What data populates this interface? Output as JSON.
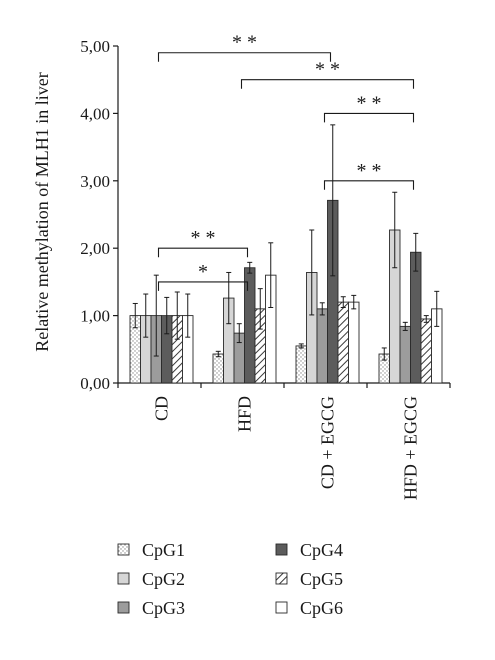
{
  "chart_data": {
    "type": "bar",
    "ylabel": "Relative methylation of MLH1 in liver",
    "ylim": [
      0,
      5
    ],
    "yticks": [
      "0,00",
      "1,00",
      "2,00",
      "3,00",
      "4,00",
      "5,00"
    ],
    "grid": false,
    "categories": [
      "CD",
      "HFD",
      "CD + EGCG",
      "HFD + EGCG"
    ],
    "series": [
      {
        "name": "CpG1",
        "pattern": "dots",
        "values": [
          1.0,
          0.43,
          0.55,
          0.43
        ],
        "errors": [
          0.18,
          0.04,
          0.03,
          0.09
        ]
      },
      {
        "name": "CpG2",
        "pattern": "light-gray",
        "values": [
          1.0,
          1.26,
          1.64,
          2.27
        ],
        "errors": [
          0.32,
          0.38,
          0.63,
          0.56
        ]
      },
      {
        "name": "CpG3",
        "pattern": "gray",
        "values": [
          1.0,
          0.74,
          1.1,
          0.84
        ],
        "errors": [
          0.6,
          0.14,
          0.09,
          0.06
        ]
      },
      {
        "name": "CpG4",
        "pattern": "dark-gray",
        "values": [
          1.0,
          1.71,
          2.71,
          1.94
        ],
        "errors": [
          0.27,
          0.08,
          1.12,
          0.28
        ]
      },
      {
        "name": "CpG5",
        "pattern": "hatch",
        "values": [
          1.0,
          1.1,
          1.2,
          0.95
        ],
        "errors": [
          0.35,
          0.3,
          0.08,
          0.05
        ]
      },
      {
        "name": "CpG6",
        "pattern": "white",
        "values": [
          1.0,
          1.6,
          1.2,
          1.1
        ],
        "errors": [
          0.32,
          0.48,
          0.1,
          0.26
        ]
      }
    ],
    "significance": [
      {
        "label": "* *",
        "from": "CD",
        "to": "CD + EGCG",
        "y": 4.9
      },
      {
        "label": "* *",
        "from": "HFD",
        "to": "HFD + EGCG",
        "y": 4.5
      },
      {
        "label": "* *",
        "from": "CD + EGCG",
        "to": "HFD + EGCG",
        "y": 4.0
      },
      {
        "label": "* *",
        "from": "CD + EGCG",
        "to": "HFD + EGCG",
        "y": 3.0
      },
      {
        "label": "*",
        "from": "CD",
        "to": "HFD",
        "y": 1.5
      },
      {
        "label": "* *",
        "from": "CD",
        "to": "HFD",
        "y": 2.0
      }
    ],
    "legend_position": "bottom",
    "legend_columns": 2
  },
  "colors": {
    "axis": "#1a1a1a",
    "light-gray": "#d6d6d6",
    "gray": "#9c9c9c",
    "dark-gray": "#5c5c5c",
    "white": "#ffffff",
    "dots": "#b0b0b0",
    "hatch": "#3a3a3a"
  }
}
